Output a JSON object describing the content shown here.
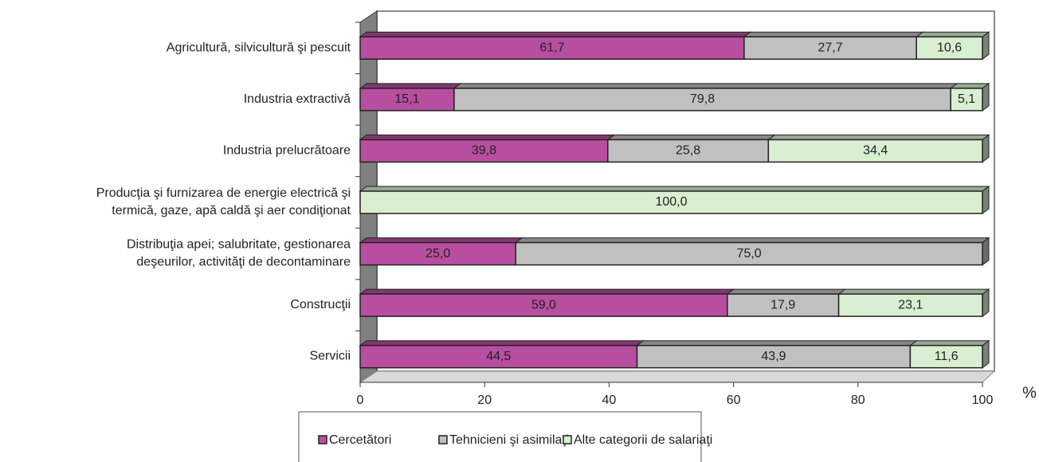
{
  "chart_data": {
    "type": "stacked_bar_horizontal",
    "categories": [
      "Agricultură, silvicultură şi pescuit",
      "Industria extractivă",
      "Industria prelucrătoare",
      "Producţia şi furnizarea de energie electrică şi\ntermică, gaze, apă caldă şi aer condiţionat",
      "Distribuţia apei; salubritate, gestionarea\ndeşeurilor, activităţi de decontaminare",
      "Construcţii",
      "Servicii"
    ],
    "series": [
      {
        "name": "Cercetători",
        "color": "#b84ea0",
        "values": [
          61.7,
          15.1,
          39.8,
          null,
          25.0,
          59.0,
          44.5
        ],
        "value_labels": [
          "61,7",
          "15,1",
          "39,8",
          null,
          "25,0",
          "59,0",
          "44,5"
        ]
      },
      {
        "name": "Tehnicieni şi asimilaţi",
        "color": "#c0c0c0",
        "values": [
          27.7,
          79.8,
          25.8,
          null,
          75.0,
          17.9,
          43.9
        ],
        "value_labels": [
          "27,7",
          "79,8",
          "25,8",
          null,
          "75,0",
          "17,9",
          "43,9"
        ]
      },
      {
        "name": "Alte categorii de salariaţi",
        "color": "#d8efd2",
        "values": [
          10.6,
          5.1,
          34.4,
          100.0,
          null,
          23.1,
          11.6
        ],
        "value_labels": [
          "10,6",
          "5,1",
          "34,4",
          "100,0",
          null,
          "23,1",
          "11,6"
        ]
      }
    ],
    "xlabel": "%",
    "xlim": [
      0,
      100
    ],
    "xticks": [
      0,
      20,
      40,
      60,
      80,
      100
    ]
  }
}
